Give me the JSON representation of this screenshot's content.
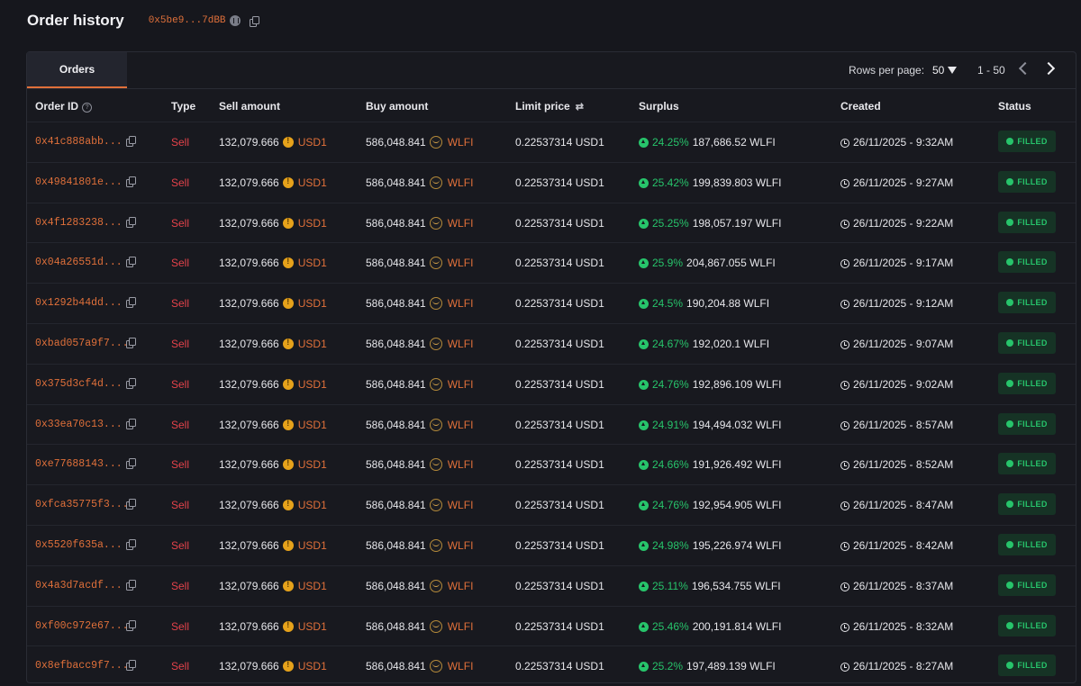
{
  "page": {
    "title": "Order history",
    "address": "0x5be9...7dBB"
  },
  "toolbar": {
    "tab_label": "Orders",
    "rows_per_page_label": "Rows per page:",
    "rows_per_page_value": "50",
    "range": "1 - 50"
  },
  "columns": {
    "order_id": "Order ID",
    "type": "Type",
    "sell_amount": "Sell amount",
    "buy_amount": "Buy amount",
    "limit_price": "Limit price",
    "surplus": "Surplus",
    "created": "Created",
    "status": "Status"
  },
  "icons": {
    "help": "help-circle-icon",
    "swap": "swap-arrows-icon",
    "copy": "copy-icon",
    "usd1": "usd1-token-icon",
    "wlfi": "wlfi-token-icon",
    "up": "arrow-up-circle-icon",
    "clock": "clock-icon"
  },
  "colors": {
    "accent": "#e0703a",
    "sell": "#e4424a",
    "positive": "#27c46b",
    "background": "#16171d"
  },
  "orders": [
    {
      "id": "0x41c888abb...",
      "type": "Sell",
      "sell_amount": "132,079.666",
      "sell_token": "USD1",
      "buy_amount": "586,048.841",
      "buy_token": "WLFI",
      "limit_price": "0.22537314 USD1",
      "surplus_pct": "24.25%",
      "surplus_amount": "187,686.52 WLFI",
      "created": "26/11/2025 - 9:32AM",
      "status": "FILLED"
    },
    {
      "id": "0x49841801e...",
      "type": "Sell",
      "sell_amount": "132,079.666",
      "sell_token": "USD1",
      "buy_amount": "586,048.841",
      "buy_token": "WLFI",
      "limit_price": "0.22537314 USD1",
      "surplus_pct": "25.42%",
      "surplus_amount": "199,839.803 WLFI",
      "created": "26/11/2025 - 9:27AM",
      "status": "FILLED"
    },
    {
      "id": "0x4f1283238...",
      "type": "Sell",
      "sell_amount": "132,079.666",
      "sell_token": "USD1",
      "buy_amount": "586,048.841",
      "buy_token": "WLFI",
      "limit_price": "0.22537314 USD1",
      "surplus_pct": "25.25%",
      "surplus_amount": "198,057.197 WLFI",
      "created": "26/11/2025 - 9:22AM",
      "status": "FILLED"
    },
    {
      "id": "0x04a26551d...",
      "type": "Sell",
      "sell_amount": "132,079.666",
      "sell_token": "USD1",
      "buy_amount": "586,048.841",
      "buy_token": "WLFI",
      "limit_price": "0.22537314 USD1",
      "surplus_pct": "25.9%",
      "surplus_amount": "204,867.055 WLFI",
      "created": "26/11/2025 - 9:17AM",
      "status": "FILLED"
    },
    {
      "id": "0x1292b44dd...",
      "type": "Sell",
      "sell_amount": "132,079.666",
      "sell_token": "USD1",
      "buy_amount": "586,048.841",
      "buy_token": "WLFI",
      "limit_price": "0.22537314 USD1",
      "surplus_pct": "24.5%",
      "surplus_amount": "190,204.88 WLFI",
      "created": "26/11/2025 - 9:12AM",
      "status": "FILLED"
    },
    {
      "id": "0xbad057a9f7...",
      "type": "Sell",
      "sell_amount": "132,079.666",
      "sell_token": "USD1",
      "buy_amount": "586,048.841",
      "buy_token": "WLFI",
      "limit_price": "0.22537314 USD1",
      "surplus_pct": "24.67%",
      "surplus_amount": "192,020.1 WLFI",
      "created": "26/11/2025 - 9:07AM",
      "status": "FILLED"
    },
    {
      "id": "0x375d3cf4d...",
      "type": "Sell",
      "sell_amount": "132,079.666",
      "sell_token": "USD1",
      "buy_amount": "586,048.841",
      "buy_token": "WLFI",
      "limit_price": "0.22537314 USD1",
      "surplus_pct": "24.76%",
      "surplus_amount": "192,896.109 WLFI",
      "created": "26/11/2025 - 9:02AM",
      "status": "FILLED"
    },
    {
      "id": "0x33ea70c13...",
      "type": "Sell",
      "sell_amount": "132,079.666",
      "sell_token": "USD1",
      "buy_amount": "586,048.841",
      "buy_token": "WLFI",
      "limit_price": "0.22537314 USD1",
      "surplus_pct": "24.91%",
      "surplus_amount": "194,494.032 WLFI",
      "created": "26/11/2025 - 8:57AM",
      "status": "FILLED"
    },
    {
      "id": "0xe77688143...",
      "type": "Sell",
      "sell_amount": "132,079.666",
      "sell_token": "USD1",
      "buy_amount": "586,048.841",
      "buy_token": "WLFI",
      "limit_price": "0.22537314 USD1",
      "surplus_pct": "24.66%",
      "surplus_amount": "191,926.492 WLFI",
      "created": "26/11/2025 - 8:52AM",
      "status": "FILLED"
    },
    {
      "id": "0xfca35775f3...",
      "type": "Sell",
      "sell_amount": "132,079.666",
      "sell_token": "USD1",
      "buy_amount": "586,048.841",
      "buy_token": "WLFI",
      "limit_price": "0.22537314 USD1",
      "surplus_pct": "24.76%",
      "surplus_amount": "192,954.905 WLFI",
      "created": "26/11/2025 - 8:47AM",
      "status": "FILLED"
    },
    {
      "id": "0x5520f635a...",
      "type": "Sell",
      "sell_amount": "132,079.666",
      "sell_token": "USD1",
      "buy_amount": "586,048.841",
      "buy_token": "WLFI",
      "limit_price": "0.22537314 USD1",
      "surplus_pct": "24.98%",
      "surplus_amount": "195,226.974 WLFI",
      "created": "26/11/2025 - 8:42AM",
      "status": "FILLED"
    },
    {
      "id": "0x4a3d7acdf...",
      "type": "Sell",
      "sell_amount": "132,079.666",
      "sell_token": "USD1",
      "buy_amount": "586,048.841",
      "buy_token": "WLFI",
      "limit_price": "0.22537314 USD1",
      "surplus_pct": "25.11%",
      "surplus_amount": "196,534.755 WLFI",
      "created": "26/11/2025 - 8:37AM",
      "status": "FILLED"
    },
    {
      "id": "0xf00c972e67...",
      "type": "Sell",
      "sell_amount": "132,079.666",
      "sell_token": "USD1",
      "buy_amount": "586,048.841",
      "buy_token": "WLFI",
      "limit_price": "0.22537314 USD1",
      "surplus_pct": "25.46%",
      "surplus_amount": "200,191.814 WLFI",
      "created": "26/11/2025 - 8:32AM",
      "status": "FILLED"
    },
    {
      "id": "0x8efbacc9f7...",
      "type": "Sell",
      "sell_amount": "132,079.666",
      "sell_token": "USD1",
      "buy_amount": "586,048.841",
      "buy_token": "WLFI",
      "limit_price": "0.22537314 USD1",
      "surplus_pct": "25.2%",
      "surplus_amount": "197,489.139 WLFI",
      "created": "26/11/2025 - 8:27AM",
      "status": "FILLED"
    }
  ]
}
